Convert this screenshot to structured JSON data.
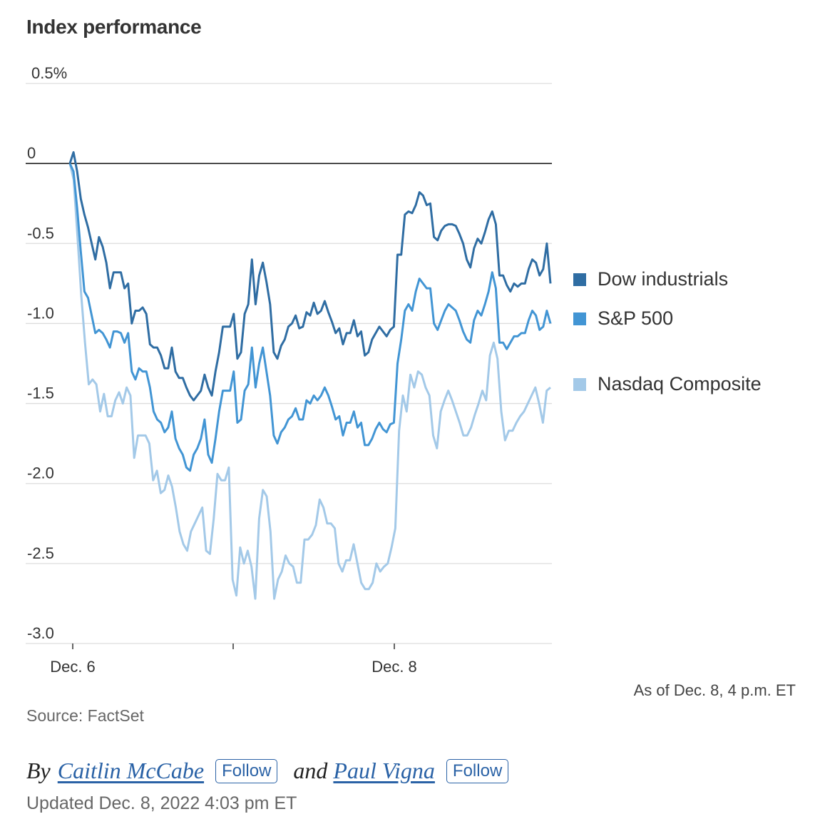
{
  "chart_data": {
    "type": "line",
    "title": "Index performance",
    "x_tick_labels": [
      "Dec. 6",
      "",
      "Dec. 8"
    ],
    "y_ticks": [
      0.5,
      0,
      -0.5,
      -1.0,
      -1.5,
      -2.0,
      -2.5,
      -3.0
    ],
    "y_tick_labels": [
      "0.5%",
      "0",
      "-0.5",
      "-1.0",
      "-1.5",
      "-2.0",
      "-2.5",
      "-3.0"
    ],
    "ylim": [
      -3.0,
      0.5
    ],
    "grid": true,
    "legend_position": "right",
    "series": [
      {
        "name": "Dow industrials",
        "color": "#2f6da3",
        "values": [
          0.0,
          0.07,
          -0.05,
          -0.22,
          -0.32,
          -0.4,
          -0.5,
          -0.6,
          -0.46,
          -0.52,
          -0.62,
          -0.78,
          -0.68,
          -0.68,
          -0.68,
          -0.78,
          -0.75,
          -1.0,
          -0.92,
          -0.92,
          -0.9,
          -0.94,
          -1.13,
          -1.15,
          -1.15,
          -1.2,
          -1.28,
          -1.28,
          -1.15,
          -1.3,
          -1.34,
          -1.34,
          -1.4,
          -1.45,
          -1.48,
          -1.45,
          -1.42,
          -1.32,
          -1.4,
          -1.45,
          -1.3,
          -1.18,
          -1.02,
          -1.02,
          -1.02,
          -0.94,
          -1.22,
          -1.18,
          -0.94,
          -0.88,
          -0.6,
          -0.88,
          -0.7,
          -0.62,
          -0.74,
          -0.88,
          -1.18,
          -1.22,
          -1.14,
          -1.1,
          -1.02,
          -1.0,
          -0.95,
          -1.03,
          -1.02,
          -0.93,
          -0.95,
          -0.87,
          -0.94,
          -0.92,
          -0.86,
          -0.93,
          -0.99,
          -1.06,
          -1.03,
          -1.13,
          -1.06,
          -1.06,
          -0.98,
          -1.08,
          -1.05,
          -1.2,
          -1.18,
          -1.1,
          -1.06,
          -1.02,
          -1.05,
          -1.08,
          -1.04,
          -1.02,
          -0.57,
          -0.57,
          -0.32,
          -0.3,
          -0.31,
          -0.26,
          -0.18,
          -0.2,
          -0.26,
          -0.25,
          -0.46,
          -0.48,
          -0.42,
          -0.39,
          -0.38,
          -0.38,
          -0.39,
          -0.44,
          -0.5,
          -0.6,
          -0.65,
          -0.53,
          -0.47,
          -0.5,
          -0.43,
          -0.35,
          -0.3,
          -0.38,
          -0.7,
          -0.7,
          -0.76,
          -0.8,
          -0.75,
          -0.77,
          -0.75,
          -0.75,
          -0.66,
          -0.6,
          -0.62,
          -0.7,
          -0.66,
          -0.5,
          -0.75
        ]
      },
      {
        "name": "S&P 500",
        "color": "#4295d4",
        "values": [
          0.0,
          -0.05,
          -0.28,
          -0.55,
          -0.8,
          -0.84,
          -0.95,
          -1.06,
          -1.04,
          -1.06,
          -1.1,
          -1.15,
          -1.05,
          -1.05,
          -1.06,
          -1.12,
          -1.06,
          -1.3,
          -1.35,
          -1.28,
          -1.3,
          -1.3,
          -1.4,
          -1.55,
          -1.6,
          -1.62,
          -1.68,
          -1.65,
          -1.55,
          -1.72,
          -1.78,
          -1.82,
          -1.9,
          -1.92,
          -1.82,
          -1.78,
          -1.72,
          -1.6,
          -1.82,
          -1.87,
          -1.72,
          -1.55,
          -1.42,
          -1.42,
          -1.42,
          -1.3,
          -1.62,
          -1.6,
          -1.42,
          -1.38,
          -1.15,
          -1.4,
          -1.25,
          -1.15,
          -1.3,
          -1.45,
          -1.7,
          -1.75,
          -1.68,
          -1.65,
          -1.6,
          -1.58,
          -1.53,
          -1.6,
          -1.6,
          -1.48,
          -1.5,
          -1.45,
          -1.48,
          -1.45,
          -1.4,
          -1.45,
          -1.52,
          -1.6,
          -1.58,
          -1.7,
          -1.62,
          -1.62,
          -1.55,
          -1.65,
          -1.62,
          -1.76,
          -1.76,
          -1.72,
          -1.66,
          -1.62,
          -1.66,
          -1.68,
          -1.63,
          -1.62,
          -1.25,
          -1.1,
          -0.92,
          -0.88,
          -0.92,
          -0.8,
          -0.72,
          -0.75,
          -0.78,
          -0.78,
          -1.0,
          -1.04,
          -0.98,
          -0.92,
          -0.88,
          -0.9,
          -0.92,
          -0.98,
          -1.05,
          -1.1,
          -1.12,
          -0.98,
          -0.92,
          -0.95,
          -0.88,
          -0.8,
          -0.68,
          -0.78,
          -1.12,
          -1.12,
          -1.16,
          -1.12,
          -1.08,
          -1.08,
          -1.06,
          -1.06,
          -0.98,
          -0.92,
          -0.95,
          -1.04,
          -1.02,
          -0.92,
          -1.0
        ]
      },
      {
        "name": "Nasdaq Composite",
        "color": "#a3c9e8",
        "values": [
          0.0,
          -0.1,
          -0.45,
          -0.82,
          -1.12,
          -1.38,
          -1.35,
          -1.38,
          -1.55,
          -1.44,
          -1.58,
          -1.58,
          -1.48,
          -1.43,
          -1.5,
          -1.4,
          -1.45,
          -1.84,
          -1.7,
          -1.7,
          -1.7,
          -1.75,
          -1.98,
          -1.92,
          -2.06,
          -2.04,
          -1.95,
          -2.02,
          -2.15,
          -2.3,
          -2.38,
          -2.42,
          -2.3,
          -2.25,
          -2.2,
          -2.15,
          -2.42,
          -2.44,
          -2.22,
          -1.94,
          -1.98,
          -1.98,
          -1.9,
          -2.6,
          -2.7,
          -2.4,
          -2.5,
          -2.42,
          -2.52,
          -2.72,
          -2.22,
          -2.04,
          -2.08,
          -2.3,
          -2.72,
          -2.6,
          -2.55,
          -2.45,
          -2.5,
          -2.52,
          -2.62,
          -2.62,
          -2.35,
          -2.35,
          -2.32,
          -2.26,
          -2.1,
          -2.15,
          -2.25,
          -2.25,
          -2.28,
          -2.5,
          -2.55,
          -2.48,
          -2.48,
          -2.38,
          -2.5,
          -2.62,
          -2.66,
          -2.66,
          -2.62,
          -2.5,
          -2.55,
          -2.52,
          -2.5,
          -2.4,
          -2.28,
          -1.67,
          -1.45,
          -1.55,
          -1.32,
          -1.4,
          -1.3,
          -1.32,
          -1.4,
          -1.45,
          -1.7,
          -1.78,
          -1.55,
          -1.48,
          -1.42,
          -1.48,
          -1.55,
          -1.62,
          -1.7,
          -1.7,
          -1.65,
          -1.57,
          -1.5,
          -1.42,
          -1.48,
          -1.2,
          -1.12,
          -1.22,
          -1.55,
          -1.73,
          -1.67,
          -1.67,
          -1.62,
          -1.58,
          -1.55,
          -1.5,
          -1.45,
          -1.4,
          -1.5,
          -1.62,
          -1.42,
          -1.4
        ]
      }
    ]
  },
  "annotations": {
    "as_of": "As of Dec. 8, 4 p.m. ET",
    "source": "Source: FactSet"
  },
  "byline": {
    "by": "By",
    "authors": [
      "Caitlin McCabe",
      "Paul Vigna"
    ],
    "follow_label": "Follow",
    "and": "and",
    "updated": "Updated Dec. 8, 2022 4:03 pm ET"
  },
  "colors": {
    "gridline": "#dddddd",
    "zero_line": "#222222",
    "author_link": "#2a62a6"
  }
}
